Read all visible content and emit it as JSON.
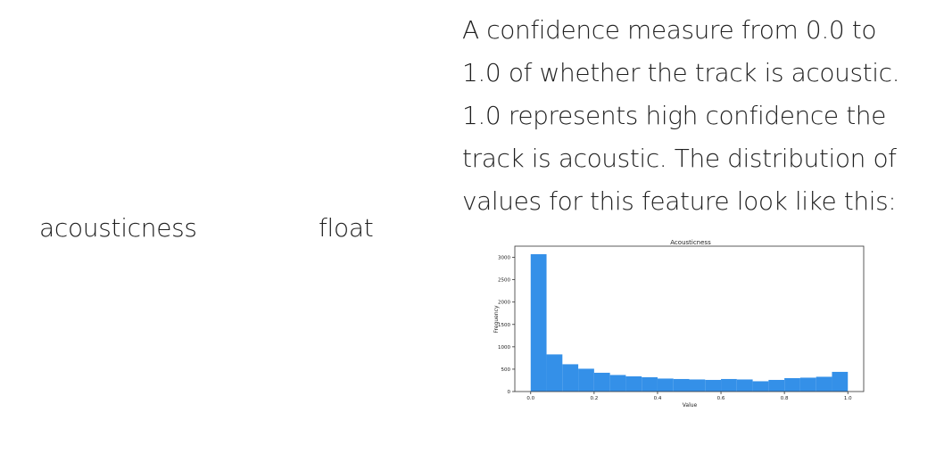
{
  "row": {
    "field": "acousticness",
    "type": "float",
    "description_lines": [
      "A confidence measure from 0.0 to",
      "1.0 of whether the track is acoustic.",
      "1.0 represents high confidence the",
      "track is acoustic. The distribution of",
      "values for this feature look like this:"
    ]
  },
  "colors": {
    "bar": "#3490e8",
    "text": "#1f1f1f"
  },
  "chart_data": {
    "type": "bar",
    "title": "Acousticness",
    "xlabel": "Value",
    "ylabel": "Frequency",
    "xlim": [
      -0.05,
      1.05
    ],
    "ylim": [
      0,
      3250
    ],
    "xticks": [
      0.0,
      0.2,
      0.4,
      0.6,
      0.8,
      1.0
    ],
    "xtick_labels": [
      "0.0",
      "0.2",
      "0.4",
      "0.6",
      "0.8",
      "1.0"
    ],
    "yticks": [
      0,
      500,
      1000,
      1500,
      2000,
      2500,
      3000
    ],
    "ytick_labels": [
      "0",
      "500",
      "1000",
      "1500",
      "2000",
      "2500",
      "3000"
    ],
    "bin_edges": [
      0.0,
      0.05,
      0.1,
      0.15,
      0.2,
      0.25,
      0.3,
      0.35,
      0.4,
      0.45,
      0.5,
      0.55,
      0.6,
      0.65,
      0.7,
      0.75,
      0.8,
      0.85,
      0.9,
      0.95,
      1.0
    ],
    "values": [
      3070,
      830,
      610,
      510,
      420,
      370,
      340,
      320,
      290,
      280,
      270,
      260,
      280,
      270,
      230,
      260,
      300,
      310,
      330,
      440
    ],
    "grid": false,
    "legend": "none"
  }
}
